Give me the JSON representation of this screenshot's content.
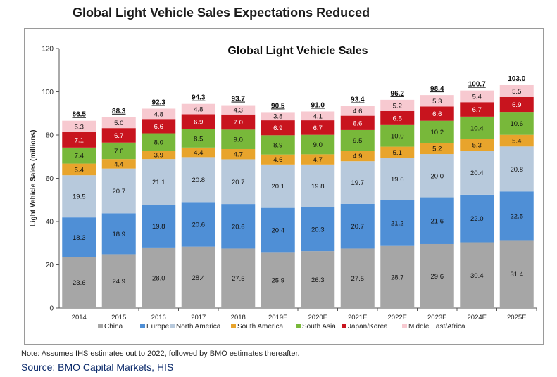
{
  "page": {
    "title": "Global Light Vehicle Sales Expectations Reduced",
    "note": "Note: Assumes IHS estimates out to 2022, followed by BMO estimates thereafter.",
    "source": "Source: BMO Capital Markets, HIS"
  },
  "chart_data": {
    "type": "bar",
    "stacked": true,
    "title": "Global Light Vehicle Sales",
    "xlabel": "",
    "ylabel": "Light Vehicle Sales (millions)",
    "ylim": [
      0,
      120
    ],
    "yticks": [
      "0",
      "20",
      "40",
      "60",
      "80",
      "100",
      "120"
    ],
    "categories": [
      "2014",
      "2015",
      "2016",
      "2017",
      "2018",
      "2019E",
      "2020E",
      "2021E",
      "2022E",
      "2023E",
      "2024E",
      "2025E"
    ],
    "totals": [
      "86.5",
      "88.3",
      "92.3",
      "94.3",
      "93.7",
      "90.5",
      "91.0",
      "93.4",
      "96.2",
      "98.4",
      "100.7",
      "103.0"
    ],
    "series": [
      {
        "name": "China",
        "color": "#a6a6a6",
        "values": [
          23.6,
          24.9,
          28.0,
          28.4,
          27.5,
          25.9,
          26.3,
          27.5,
          28.7,
          29.6,
          30.4,
          31.4
        ]
      },
      {
        "name": "Europe",
        "color": "#4f8fd6",
        "values": [
          18.3,
          18.9,
          19.8,
          20.6,
          20.6,
          20.4,
          20.3,
          20.7,
          21.2,
          21.6,
          22.0,
          22.5
        ]
      },
      {
        "name": "North America",
        "color": "#b7c9dc",
        "values": [
          19.5,
          20.7,
          21.1,
          20.8,
          20.7,
          20.1,
          19.8,
          19.7,
          19.6,
          20.0,
          20.4,
          20.8
        ]
      },
      {
        "name": "South America",
        "color": "#e8a42c",
        "values": [
          5.4,
          4.4,
          3.9,
          4.4,
          4.7,
          4.6,
          4.7,
          4.9,
          5.1,
          5.2,
          5.3,
          5.4
        ]
      },
      {
        "name": "South Asia",
        "color": "#78b83a",
        "values": [
          7.4,
          7.6,
          8.0,
          8.5,
          9.0,
          8.9,
          9.0,
          9.5,
          10.0,
          10.2,
          10.4,
          10.6
        ]
      },
      {
        "name": "Japan/Korea",
        "color": "#c8141e",
        "values": [
          7.1,
          6.7,
          6.6,
          6.9,
          7.0,
          6.9,
          6.7,
          6.6,
          6.5,
          6.6,
          6.7,
          6.9
        ]
      },
      {
        "name": "Middle East/Africa",
        "color": "#f7c9d0",
        "values": [
          5.3,
          5.0,
          4.8,
          4.8,
          4.3,
          3.8,
          4.1,
          4.6,
          5.2,
          5.3,
          5.4,
          5.5
        ]
      }
    ],
    "legend": "bottom",
    "grid": false
  }
}
